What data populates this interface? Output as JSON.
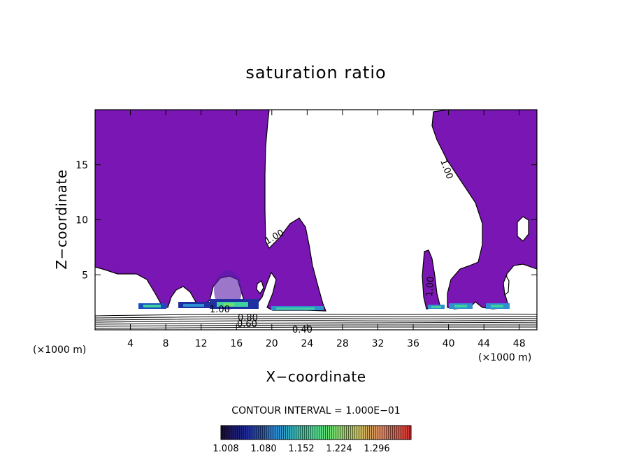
{
  "chart_data": {
    "type": "contour",
    "title": "saturation ratio",
    "xlabel": "X−coordinate",
    "ylabel": "Z−coordinate",
    "x_unit_label": "(×1000 m)",
    "xlim": [
      0,
      50
    ],
    "ylim": [
      0,
      20
    ],
    "x_ticks": [
      4,
      8,
      12,
      16,
      20,
      24,
      28,
      32,
      36,
      40,
      44,
      48
    ],
    "x_tick_labels": [
      "4",
      "8",
      "12",
      "16",
      "20",
      "24",
      "28",
      "32",
      "36",
      "40",
      "44",
      "48"
    ],
    "y_ticks": [
      5,
      10,
      15
    ],
    "y_tick_labels": [
      "5",
      "10",
      "15"
    ],
    "contour_interval_text": "CONTOUR INTERVAL = 1.000E−01",
    "contour_labels": [
      "1.00",
      "1.00",
      "1.00",
      "1.00",
      "0.80",
      "0.60",
      "0.40"
    ],
    "fill_color": "#7a16b4",
    "colorbar": {
      "ticks": [
        "1.008",
        "1.080",
        "1.152",
        "1.224",
        "1.296"
      ],
      "colors": [
        "#1a0a3a",
        "#2030a0",
        "#2f8fd0",
        "#40d0a0",
        "#6fe070",
        "#c8c060",
        "#e08060",
        "#d03030"
      ]
    }
  }
}
